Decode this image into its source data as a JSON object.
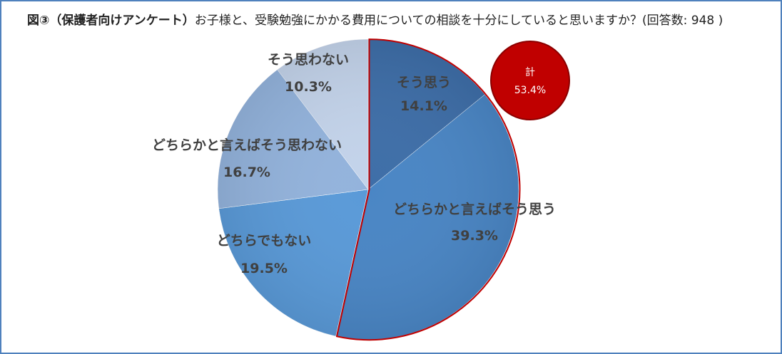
{
  "title": {
    "bold": "図③（保護者向けアンケート）",
    "text": "お子様と、受験勉強にかかる費用についての相談を十分にしていると思いますか？(回答数: 948 )"
  },
  "total_badge": {
    "label": "計",
    "value": "53.4%"
  },
  "chart_data": {
    "type": "pie",
    "title": "図③（保護者向けアンケート）お子様と、受験勉強にかかる費用についての相談を十分にしていると思いますか？(回答数: 948 )",
    "respondents": 948,
    "start_angle_deg": 0,
    "direction": "clockwise",
    "slices": [
      {
        "label": "そう思う",
        "value": 14.1,
        "value_label": "14.1%",
        "color": "#3e6ea8",
        "highlighted": true
      },
      {
        "label": "どちらかと言えばそう思う",
        "value": 39.3,
        "value_label": "39.3%",
        "color": "#4a86c5",
        "highlighted": true
      },
      {
        "label": "どちらでもない",
        "value": 19.5,
        "value_label": "19.5%",
        "color": "#5a9ad8",
        "highlighted": false
      },
      {
        "label": "どちらかと言えばそう思わない",
        "value": 16.7,
        "value_label": "16.7%",
        "color": "#93b3dc",
        "highlighted": false
      },
      {
        "label": "そう思わない",
        "value": 10.3,
        "value_label": "10.3%",
        "color": "#c3d3ea",
        "highlighted": false
      }
    ],
    "highlight_outline_color": "#c00000",
    "total_badge_color": "#c00000"
  }
}
